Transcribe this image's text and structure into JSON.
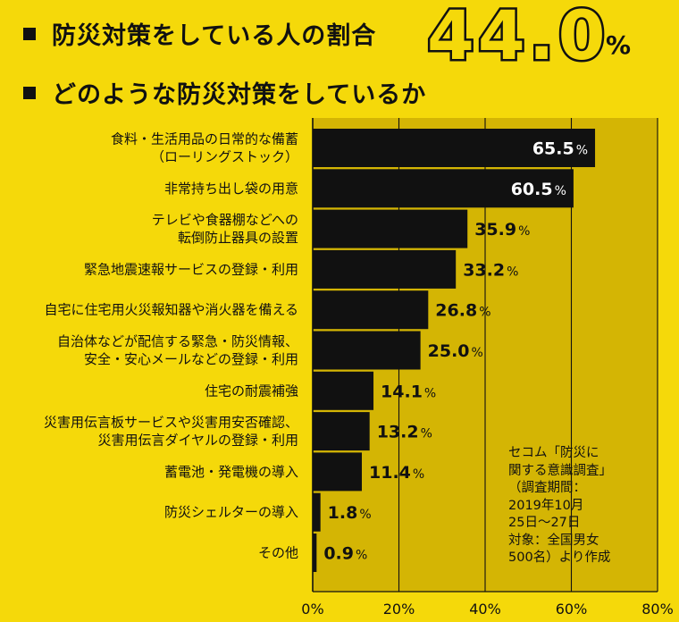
{
  "header": {
    "title1": "防災対策をしている人の割合",
    "big_value": "44.0",
    "big_unit": "%",
    "title2": "どのような防災対策をしているか"
  },
  "colors": {
    "background": "#F5D90A",
    "plot_background": "#D4B504",
    "bar": "#111111",
    "inside_label": "#FFFFFF",
    "outside_label": "#111111"
  },
  "chart_data": {
    "type": "bar",
    "orientation": "horizontal",
    "categories": [
      [
        "食料・生活用品の日常的な備蓄",
        "（ローリングストック）"
      ],
      [
        "非常持ち出し袋の用意"
      ],
      [
        "テレビや食器棚などへの",
        "転倒防止器具の設置"
      ],
      [
        "緊急地震速報サービスの登録・利用"
      ],
      [
        "自宅に住宅用火災報知器や消火器を備える"
      ],
      [
        "自治体などが配信する緊急・防災情報、",
        "安全・安心メールなどの登録・利用"
      ],
      [
        "住宅の耐震補強"
      ],
      [
        "災害用伝言板サービスや災害用安否確認、",
        "災害用伝言ダイヤルの登録・利用"
      ],
      [
        "蓄電池・発電機の導入"
      ],
      [
        "防災シェルターの導入"
      ],
      [
        "その他"
      ]
    ],
    "values": [
      65.5,
      60.5,
      35.9,
      33.2,
      26.8,
      25.0,
      14.1,
      13.2,
      11.4,
      1.8,
      0.9
    ],
    "value_labels": [
      "65.5",
      "60.5",
      "35.9",
      "33.2",
      "26.8",
      "25.0",
      "14.1",
      "13.2",
      "11.4",
      "1.8",
      "0.9"
    ],
    "value_unit": "%",
    "xlim": [
      0,
      80
    ],
    "xticks": [
      0,
      20,
      40,
      60,
      80
    ],
    "xtick_labels": [
      "0%",
      "20%",
      "40%",
      "60%",
      "80%"
    ],
    "grid": true,
    "inside_label_threshold": 50
  },
  "source_note": [
    "セコム「防災に",
    "関する意識調査」",
    "（調査期間：",
    "2019年10月",
    "25日～27日",
    "対象：全国男女",
    "500名）より作成"
  ]
}
